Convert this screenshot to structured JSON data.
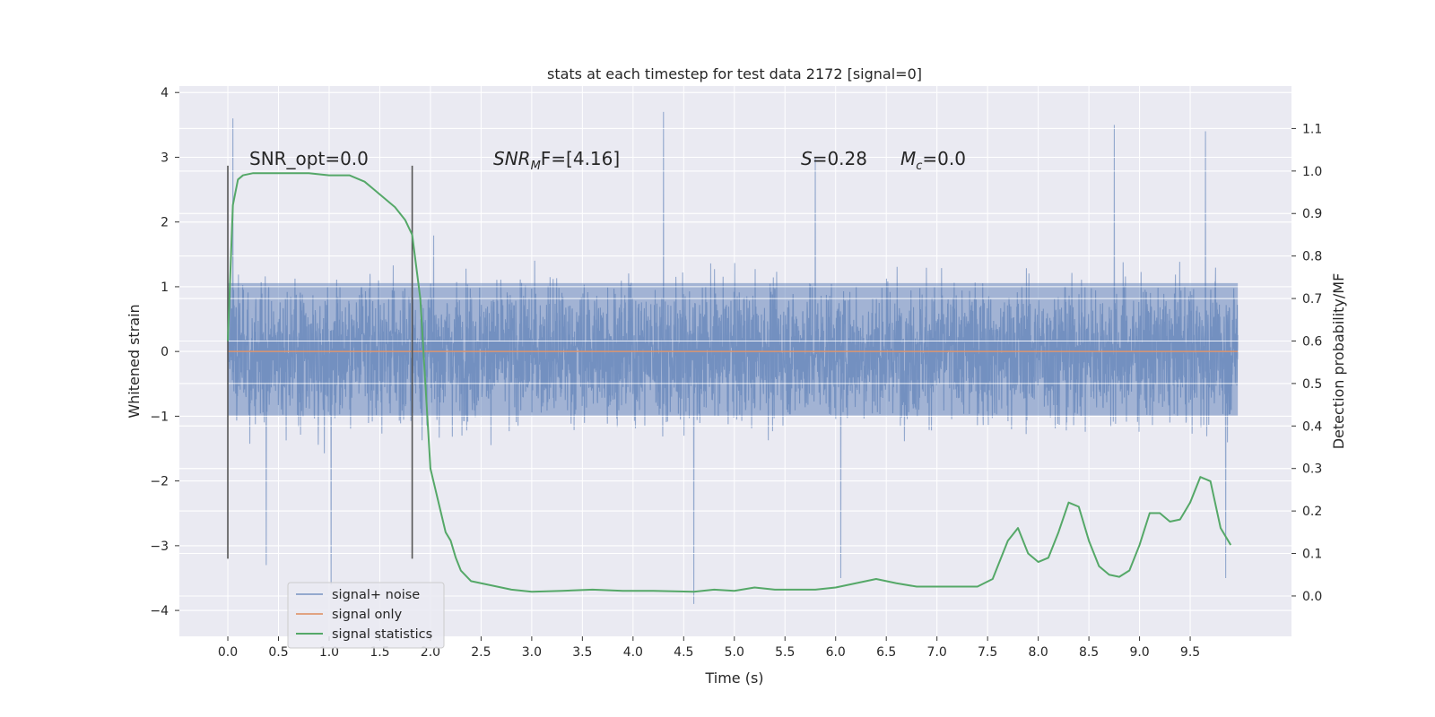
{
  "chart_data": {
    "type": "line",
    "title": "stats at each timestep for test data 2172 [signal=0]",
    "xlabel": "Time (s)",
    "ylabel": "Whitened strain",
    "y2label": "Detection probability/MF",
    "xlim": [
      -0.4783,
      10.5
    ],
    "ylim": [
      -4.4,
      4.1
    ],
    "y2lim": [
      -0.095,
      1.2
    ],
    "x_ticks": [
      "0.0",
      "0.5",
      "1.0",
      "1.5",
      "2.0",
      "2.5",
      "3.0",
      "3.5",
      "4.0",
      "4.5",
      "5.0",
      "5.5",
      "6.0",
      "6.5",
      "7.0",
      "7.5",
      "8.0",
      "8.5",
      "9.0",
      "9.5"
    ],
    "y_ticks": [
      "4",
      "3",
      "2",
      "1",
      "0",
      "−1",
      "−2",
      "−3",
      "−4"
    ],
    "y2_ticks": [
      "1.1",
      "1.0",
      "0.9",
      "0.8",
      "0.7",
      "0.6",
      "0.5",
      "0.4",
      "0.3",
      "0.2",
      "0.1",
      "0.0"
    ],
    "annotations": {
      "snr_opt": "SNR_opt=0.0",
      "snr_mf_base": "SNR",
      "snr_mf_sub": "M",
      "snr_mf_rest": "F=[4.16]",
      "s_var": "S",
      "s_val": "=0.28",
      "mc_var": "M",
      "mc_sub": "c",
      "mc_val": "=0.0"
    },
    "markers": {
      "x": [
        0.0,
        1.82
      ],
      "ymin": -3.2,
      "ymax": 2.87
    },
    "series": [
      {
        "name": "signal+ noise",
        "color": "#4c72b0",
        "x_range": [
          0.0,
          9.97
        ],
        "y_range_typical": [
          -1.5,
          1.6
        ],
        "extremes": [
          {
            "x": 0.05,
            "y": 3.6
          },
          {
            "x": 0.38,
            "y": -3.3
          },
          {
            "x": 1.02,
            "y": -3.6
          },
          {
            "x": 4.3,
            "y": 3.7
          },
          {
            "x": 4.6,
            "y": -3.9
          },
          {
            "x": 5.8,
            "y": 3.0
          },
          {
            "x": 6.05,
            "y": -3.5
          },
          {
            "x": 8.75,
            "y": 3.5
          },
          {
            "x": 9.65,
            "y": 3.4
          },
          {
            "x": 9.85,
            "y": -3.5
          }
        ]
      },
      {
        "name": "signal only",
        "color": "#dd8452",
        "x": [
          0.0,
          9.97
        ],
        "y": [
          0.0,
          0.0
        ]
      },
      {
        "name": "signal statistics",
        "color": "#55a868",
        "axis": "right",
        "x": [
          0.0,
          0.05,
          0.1,
          0.15,
          0.25,
          0.4,
          0.6,
          0.8,
          1.0,
          1.2,
          1.35,
          1.45,
          1.55,
          1.65,
          1.75,
          1.82,
          1.9,
          1.95,
          2.0,
          2.05,
          2.1,
          2.15,
          2.2,
          2.25,
          2.3,
          2.4,
          2.6,
          2.8,
          3.0,
          3.3,
          3.6,
          3.9,
          4.2,
          4.6,
          4.8,
          5.0,
          5.2,
          5.4,
          5.8,
          6.0,
          6.2,
          6.4,
          6.6,
          6.8,
          7.2,
          7.4,
          7.55,
          7.7,
          7.8,
          7.9,
          8.0,
          8.05,
          8.1,
          8.2,
          8.3,
          8.4,
          8.5,
          8.6,
          8.7,
          8.8,
          8.9,
          9.0,
          9.1,
          9.2,
          9.3,
          9.4,
          9.5,
          9.6,
          9.7,
          9.8,
          9.9
        ],
        "y": [
          0.6,
          0.92,
          0.98,
          0.99,
          0.995,
          0.995,
          0.995,
          0.995,
          0.99,
          0.99,
          0.975,
          0.955,
          0.935,
          0.915,
          0.885,
          0.85,
          0.7,
          0.5,
          0.3,
          0.25,
          0.2,
          0.15,
          0.13,
          0.09,
          0.06,
          0.035,
          0.025,
          0.015,
          0.01,
          0.012,
          0.015,
          0.012,
          0.012,
          0.01,
          0.015,
          0.012,
          0.02,
          0.015,
          0.015,
          0.02,
          0.03,
          0.04,
          0.03,
          0.022,
          0.022,
          0.022,
          0.04,
          0.13,
          0.16,
          0.1,
          0.08,
          0.085,
          0.09,
          0.15,
          0.22,
          0.21,
          0.13,
          0.07,
          0.05,
          0.045,
          0.06,
          0.12,
          0.195,
          0.195,
          0.175,
          0.18,
          0.22,
          0.28,
          0.27,
          0.16,
          0.12
        ]
      }
    ],
    "legend_location": "lower-left"
  }
}
